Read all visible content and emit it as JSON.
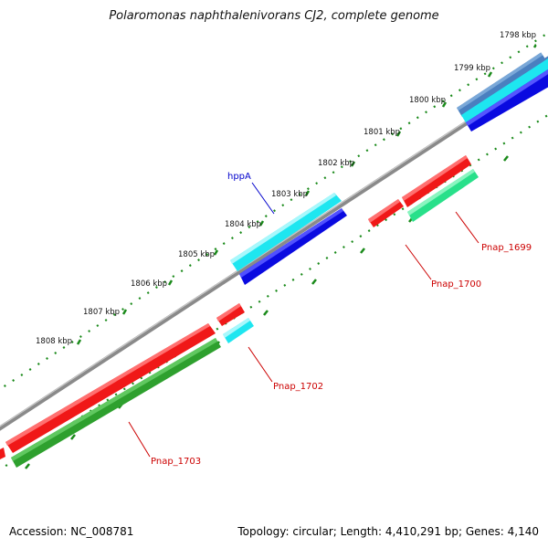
{
  "title": "Polaromonas naphthalenivorans CJ2, complete genome",
  "footer": {
    "accession": "Accession: NC_008781",
    "summary": "Topology: circular; Length: 4,410,291 bp; Genes: 4,140"
  },
  "ticks": [
    {
      "label": "1798 kbp"
    },
    {
      "label": "1799 kbp"
    },
    {
      "label": "1800 kbp"
    },
    {
      "label": "1801 kbp"
    },
    {
      "label": "1802 kbp"
    },
    {
      "label": "1803 kbp"
    },
    {
      "label": "1804 kbp"
    },
    {
      "label": "1805 kbp"
    },
    {
      "label": "1806 kbp"
    },
    {
      "label": "1807 kbp"
    },
    {
      "label": "1808 kbp"
    }
  ],
  "gene_labels": [
    {
      "label": "hppA",
      "color": "#0000cc"
    },
    {
      "label": "Pnap_1699",
      "color": "#cc0000"
    },
    {
      "label": "Pnap_1700",
      "color": "#cc0000"
    },
    {
      "label": "Pnap_1702",
      "color": "#cc0000"
    },
    {
      "label": "Pnap_1703",
      "color": "#cc0000"
    }
  ],
  "colors": {
    "backbone": "#8a8a8a",
    "tick": "#1a8a1a",
    "cyan": "#1ee6f0",
    "blue": "#0a0ae0",
    "red": "#f01818",
    "green_light": "#28e08a",
    "green_dark": "#2ea02e",
    "steel": "#4a7fbf"
  }
}
